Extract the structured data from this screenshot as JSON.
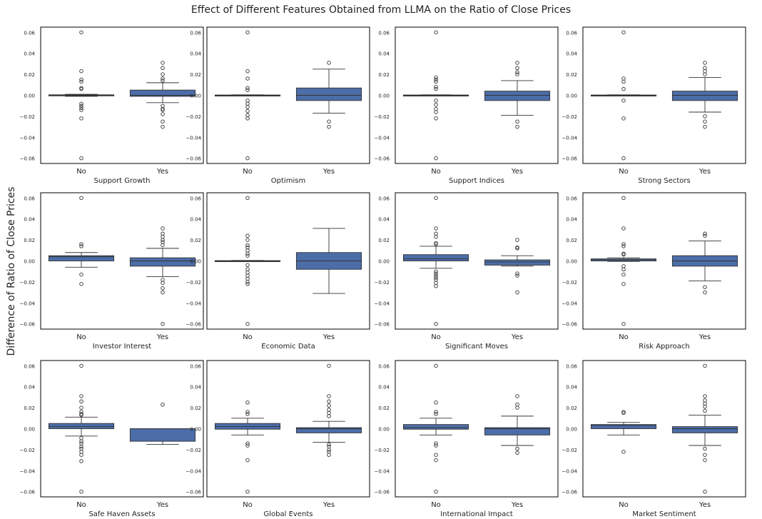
{
  "title": "Effect of Different Features Obtained from LLMA on the Ratio of Close Prices",
  "ylabel": "Difference of Ratio of Close Prices",
  "colors": {
    "box_fill": "#4c6da8",
    "line": "#333333",
    "frame": "#000000"
  },
  "chart_data": {
    "type": "box",
    "categories": [
      "No",
      "Yes"
    ],
    "ylim": [
      -0.065,
      0.065
    ],
    "yticks": [
      -0.06,
      -0.04,
      -0.02,
      0.0,
      0.02,
      0.04,
      0.06
    ],
    "ytick_labels": [
      "−0.06",
      "−0.04",
      "−0.02",
      "0.00",
      "0.02",
      "0.04",
      "0.06"
    ],
    "grid": false,
    "panels": [
      {
        "xlabel": "Support Growth",
        "boxes": [
          {
            "category": "No",
            "q1": -0.0005,
            "median": 0.0,
            "q3": 0.0005,
            "whisker_low": -0.001,
            "whisker_high": 0.001,
            "outliers": [
              0.06,
              0.023,
              0.015,
              0.013,
              0.007,
              0.006,
              -0.008,
              -0.01,
              -0.012,
              -0.014,
              -0.022,
              -0.06
            ]
          },
          {
            "category": "Yes",
            "q1": -0.001,
            "median": 0.0,
            "q3": 0.005,
            "whisker_low": -0.007,
            "whisker_high": 0.012,
            "outliers": [
              0.031,
              0.026,
              0.02,
              0.016,
              0.014,
              -0.01,
              -0.013,
              -0.014,
              -0.018,
              -0.025,
              -0.03
            ]
          }
        ]
      },
      {
        "xlabel": "Optimism",
        "boxes": [
          {
            "category": "No",
            "q1": -0.0003,
            "median": 0.0,
            "q3": 0.0003,
            "whisker_low": -0.0005,
            "whisker_high": 0.0005,
            "outliers": [
              0.06,
              0.023,
              0.016,
              0.007,
              0.005,
              -0.005,
              -0.008,
              -0.011,
              -0.015,
              -0.019,
              -0.022,
              -0.06
            ]
          },
          {
            "category": "Yes",
            "q1": -0.005,
            "median": 0.0,
            "q3": 0.007,
            "whisker_low": -0.017,
            "whisker_high": 0.025,
            "outliers": [
              0.031,
              -0.025,
              -0.03
            ]
          }
        ]
      },
      {
        "xlabel": "Support Indices",
        "boxes": [
          {
            "category": "No",
            "q1": -0.0003,
            "median": 0.0,
            "q3": 0.0003,
            "whisker_low": -0.0005,
            "whisker_high": 0.0005,
            "outliers": [
              0.06,
              0.017,
              0.015,
              0.013,
              0.008,
              0.006,
              -0.005,
              -0.009,
              -0.013,
              -0.016,
              -0.022,
              -0.06
            ]
          },
          {
            "category": "Yes",
            "q1": -0.005,
            "median": 0.0,
            "q3": 0.004,
            "whisker_low": -0.019,
            "whisker_high": 0.014,
            "outliers": [
              0.031,
              0.026,
              0.022,
              0.02,
              -0.025,
              -0.03
            ]
          }
        ]
      },
      {
        "xlabel": "Strong Sectors",
        "boxes": [
          {
            "category": "No",
            "q1": -0.0003,
            "median": 0.0,
            "q3": 0.0003,
            "whisker_low": -0.0005,
            "whisker_high": 0.0005,
            "outliers": [
              0.06,
              0.016,
              0.013,
              0.006,
              -0.005,
              -0.022,
              -0.06
            ]
          },
          {
            "category": "Yes",
            "q1": -0.005,
            "median": 0.0,
            "q3": 0.004,
            "whisker_low": -0.016,
            "whisker_high": 0.017,
            "outliers": [
              0.031,
              0.026,
              0.023,
              0.02,
              -0.02,
              -0.025,
              -0.03
            ]
          }
        ]
      },
      {
        "xlabel": "Investor Interest",
        "boxes": [
          {
            "category": "No",
            "q1": 0.0,
            "median": 0.004,
            "q3": 0.005,
            "whisker_low": -0.006,
            "whisker_high": 0.008,
            "outliers": [
              0.06,
              0.016,
              0.014,
              -0.013,
              -0.022
            ]
          },
          {
            "category": "Yes",
            "q1": -0.005,
            "median": 0.0,
            "q3": 0.003,
            "whisker_low": -0.015,
            "whisker_high": 0.012,
            "outliers": [
              0.031,
              0.026,
              0.023,
              0.02,
              0.018,
              0.015,
              -0.018,
              -0.021,
              -0.026,
              -0.03,
              -0.06
            ]
          }
        ]
      },
      {
        "xlabel": "Economic Data",
        "boxes": [
          {
            "category": "No",
            "q1": -0.0003,
            "median": 0.0,
            "q3": 0.0003,
            "whisker_low": -0.0005,
            "whisker_high": 0.0005,
            "outliers": [
              0.06,
              0.024,
              0.02,
              0.015,
              0.013,
              0.01,
              0.007,
              0.005,
              -0.004,
              -0.008,
              -0.011,
              -0.014,
              -0.017,
              -0.02,
              -0.022,
              -0.06
            ]
          },
          {
            "category": "Yes",
            "q1": -0.008,
            "median": 0.0,
            "q3": 0.008,
            "whisker_low": -0.031,
            "whisker_high": 0.031,
            "outliers": []
          }
        ]
      },
      {
        "xlabel": "Significant Moves",
        "boxes": [
          {
            "category": "No",
            "q1": 0.0,
            "median": 0.002,
            "q3": 0.006,
            "whisker_low": -0.007,
            "whisker_high": 0.014,
            "outliers": [
              0.06,
              0.031,
              0.026,
              0.023,
              0.017,
              0.016,
              -0.01,
              -0.012,
              -0.014,
              -0.016,
              -0.018,
              -0.021,
              -0.024,
              -0.06
            ]
          },
          {
            "category": "Yes",
            "q1": -0.004,
            "median": -0.001,
            "q3": 0.001,
            "whisker_low": -0.005,
            "whisker_high": 0.005,
            "outliers": [
              0.02,
              0.013,
              0.012,
              -0.012,
              -0.014,
              -0.03
            ]
          }
        ]
      },
      {
        "xlabel": "Risk Approach",
        "boxes": [
          {
            "category": "No",
            "q1": 0.0,
            "median": 0.001,
            "q3": 0.002,
            "whisker_low": -0.0005,
            "whisker_high": 0.003,
            "outliers": [
              0.06,
              0.031,
              0.016,
              0.014,
              0.007,
              0.006,
              -0.005,
              -0.008,
              -0.013,
              -0.022,
              -0.06
            ]
          },
          {
            "category": "Yes",
            "q1": -0.005,
            "median": 0.0,
            "q3": 0.005,
            "whisker_low": -0.019,
            "whisker_high": 0.019,
            "outliers": [
              0.026,
              0.024,
              -0.025,
              -0.03
            ]
          }
        ]
      },
      {
        "xlabel": "Safe Haven Assets",
        "boxes": [
          {
            "category": "No",
            "q1": 0.0,
            "median": 0.002,
            "q3": 0.005,
            "whisker_low": -0.007,
            "whisker_high": 0.011,
            "outliers": [
              0.06,
              0.031,
              0.026,
              0.02,
              0.016,
              0.014,
              0.013,
              -0.009,
              -0.012,
              -0.014,
              -0.017,
              -0.019,
              -0.022,
              -0.025,
              -0.031,
              -0.06
            ]
          },
          {
            "category": "Yes",
            "q1": -0.012,
            "median": 0.0,
            "q3": 0.0,
            "whisker_low": -0.015,
            "whisker_high": 0.0,
            "outliers": [
              0.023
            ]
          }
        ]
      },
      {
        "xlabel": "Global Events",
        "boxes": [
          {
            "category": "No",
            "q1": -0.0005,
            "median": 0.002,
            "q3": 0.005,
            "whisker_low": -0.006,
            "whisker_high": 0.01,
            "outliers": [
              0.025,
              0.016,
              0.014,
              -0.014,
              -0.016,
              -0.03,
              -0.06
            ]
          },
          {
            "category": "Yes",
            "q1": -0.004,
            "median": 0.0,
            "q3": 0.001,
            "whisker_low": -0.013,
            "whisker_high": 0.007,
            "outliers": [
              0.06,
              0.031,
              0.026,
              0.022,
              0.018,
              0.015,
              0.012,
              -0.015,
              -0.017,
              -0.02,
              -0.022,
              -0.025
            ]
          }
        ]
      },
      {
        "xlabel": "International Impact",
        "boxes": [
          {
            "category": "No",
            "q1": -0.0005,
            "median": 0.001,
            "q3": 0.004,
            "whisker_low": -0.006,
            "whisker_high": 0.01,
            "outliers": [
              0.06,
              0.025,
              0.016,
              0.014,
              -0.014,
              -0.016,
              -0.025,
              -0.03,
              -0.06
            ]
          },
          {
            "category": "Yes",
            "q1": -0.006,
            "median": 0.0,
            "q3": 0.001,
            "whisker_low": -0.016,
            "whisker_high": 0.012,
            "outliers": [
              0.031,
              0.023,
              0.02,
              -0.019,
              -0.023
            ]
          }
        ]
      },
      {
        "xlabel": "Market Sentiment",
        "boxes": [
          {
            "category": "No",
            "q1": 0.0,
            "median": 0.003,
            "q3": 0.004,
            "whisker_low": -0.006,
            "whisker_high": 0.006,
            "outliers": [
              0.016,
              0.015,
              -0.022
            ]
          },
          {
            "category": "Yes",
            "q1": -0.004,
            "median": 0.0,
            "q3": 0.002,
            "whisker_low": -0.016,
            "whisker_high": 0.013,
            "outliers": [
              0.06,
              0.031,
              0.027,
              0.024,
              0.021,
              0.017,
              -0.019,
              -0.025,
              -0.03,
              -0.06
            ]
          }
        ]
      }
    ]
  }
}
